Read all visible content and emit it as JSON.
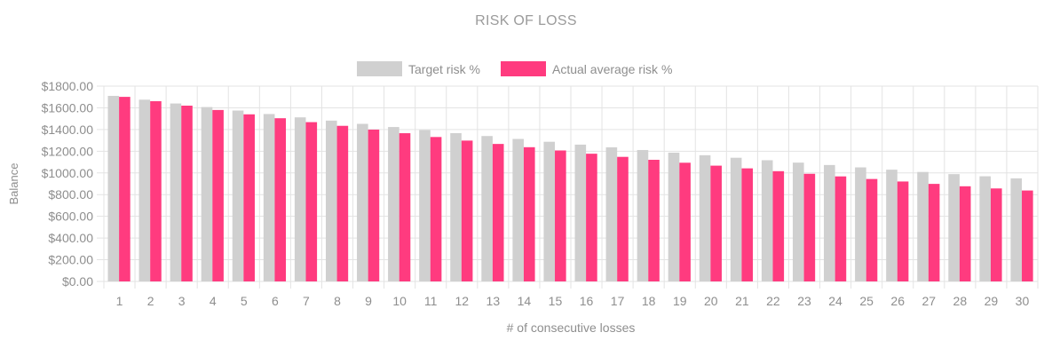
{
  "chart_data": {
    "type": "bar",
    "title": "RISK OF LOSS",
    "xlabel": "# of consecutive losses",
    "ylabel": "Balance",
    "ylim": [
      0,
      1800
    ],
    "yticks": [
      0,
      200,
      400,
      600,
      800,
      1000,
      1200,
      1400,
      1600,
      1800
    ],
    "ytick_labels": [
      "$0.00",
      "$200.00",
      "$400.00",
      "$600.00",
      "$800.00",
      "$1000.00",
      "$1200.00",
      "$1400.00",
      "$1600.00",
      "$1800.00"
    ],
    "categories": [
      "1",
      "2",
      "3",
      "4",
      "5",
      "6",
      "7",
      "8",
      "9",
      "10",
      "11",
      "12",
      "13",
      "14",
      "15",
      "16",
      "17",
      "18",
      "19",
      "20",
      "21",
      "22",
      "23",
      "24",
      "25",
      "26",
      "27",
      "28",
      "29",
      "30"
    ],
    "legend_position": "top-center",
    "grid": true,
    "series": [
      {
        "name": "Target risk %",
        "color": "#d0d0d0",
        "values": [
          1710,
          1675,
          1640,
          1607,
          1575,
          1543,
          1512,
          1482,
          1452,
          1423,
          1395,
          1367,
          1340,
          1313,
          1287,
          1261,
          1236,
          1211,
          1187,
          1163,
          1140,
          1117,
          1095,
          1073,
          1051,
          1030,
          1009,
          989,
          969,
          950
        ]
      },
      {
        "name": "Actual average risk %",
        "color": "#ff3b7f",
        "values": [
          1701,
          1661,
          1620,
          1580,
          1540,
          1504,
          1468,
          1434,
          1399,
          1366,
          1331,
          1298,
          1267,
          1237,
          1207,
          1177,
          1148,
          1121,
          1094,
          1067,
          1042,
          1016,
          992,
          968,
          944,
          921,
          899,
          877,
          857,
          838
        ]
      }
    ]
  }
}
